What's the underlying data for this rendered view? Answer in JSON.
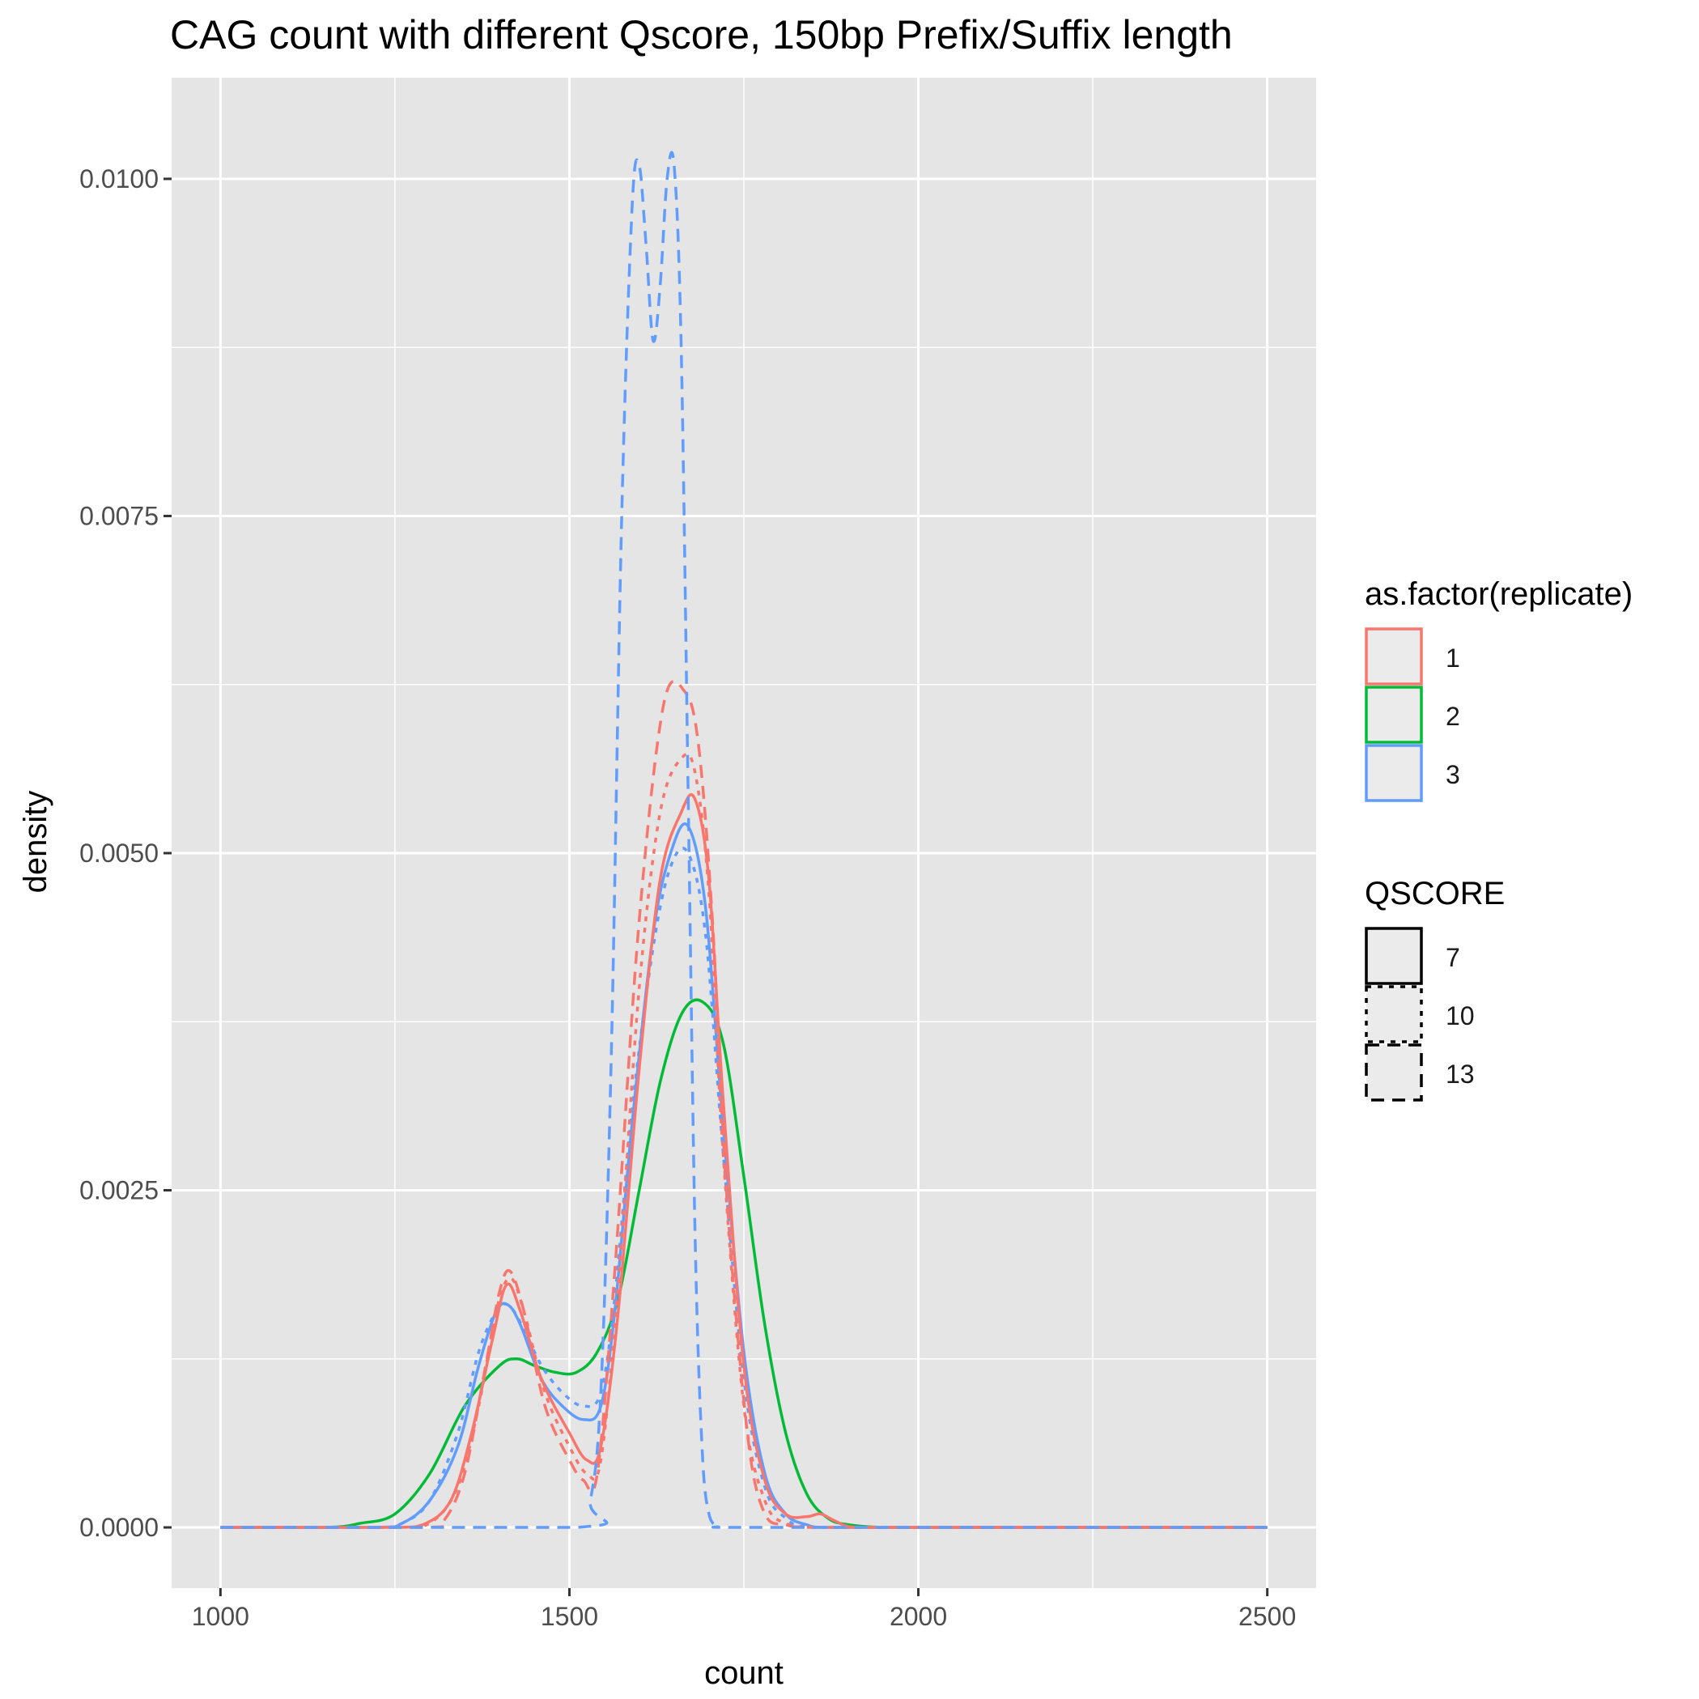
{
  "chart_data": {
    "type": "line",
    "title": "CAG count with different Qscore, 150bp Prefix/Suffix length",
    "xlabel": "count",
    "ylabel": "density",
    "xlim": [
      930,
      2570
    ],
    "ylim": [
      -0.00045,
      0.01075
    ],
    "x_ticks": [
      1000,
      1500,
      2000,
      2500
    ],
    "x_tick_labels": [
      "1000",
      "1500",
      "2000",
      "2500"
    ],
    "x_minor_ticks": [
      1250,
      1750,
      2250
    ],
    "y_ticks": [
      0,
      0.0025,
      0.005,
      0.0075,
      0.01
    ],
    "y_tick_labels": [
      "0.0000",
      "0.0025",
      "0.0050",
      "0.0075",
      "0.0100"
    ],
    "y_minor_ticks": [
      0.00125,
      0.00375,
      0.00625,
      0.00875
    ],
    "grid": true,
    "panel_background": "#e5e5e5",
    "grid_color": "#ffffff",
    "legend_position": "right",
    "legends": [
      {
        "title": "as.factor(replicate)",
        "kind": "color",
        "entries": [
          {
            "label": "1",
            "color": "#F8766D"
          },
          {
            "label": "2",
            "color": "#00BA38"
          },
          {
            "label": "3",
            "color": "#619CFF"
          }
        ]
      },
      {
        "title": "QSCORE",
        "kind": "linetype",
        "entries": [
          {
            "label": "7",
            "linetype": "solid"
          },
          {
            "label": "10",
            "linetype": "dotted"
          },
          {
            "label": "13",
            "linetype": "dashed"
          }
        ]
      }
    ],
    "series": [
      {
        "replicate": "1",
        "qscore": "7",
        "color": "#F8766D",
        "linetype": "solid",
        "x": [
          1000,
          1240,
          1290,
          1330,
          1360,
          1390,
          1410,
          1430,
          1460,
          1500,
          1525,
          1545,
          1570,
          1600,
          1630,
          1660,
          1680,
          1700,
          1720,
          1750,
          1780,
          1810,
          1840,
          1860,
          1880,
          1910,
          2000,
          2500
        ],
        "y": [
          0,
          0,
          2e-05,
          0.0002,
          0.0007,
          0.0014,
          0.0018,
          0.0016,
          0.0011,
          0.0007,
          0.0005,
          0.0006,
          0.0016,
          0.0034,
          0.0048,
          0.0053,
          0.0054,
          0.0048,
          0.0032,
          0.0012,
          0.00035,
          0.0001,
          8e-05,
          0.0001,
          5e-05,
          0,
          0,
          0
        ]
      },
      {
        "replicate": "1",
        "qscore": "10",
        "color": "#F8766D",
        "linetype": "dotted",
        "x": [
          1000,
          1250,
          1300,
          1340,
          1370,
          1395,
          1415,
          1435,
          1465,
          1500,
          1525,
          1545,
          1570,
          1600,
          1630,
          1660,
          1680,
          1700,
          1720,
          1750,
          1780,
          1810,
          1860,
          2000,
          2500
        ],
        "y": [
          0,
          0,
          3e-05,
          0.0003,
          0.0009,
          0.0016,
          0.00185,
          0.0016,
          0.001,
          0.0006,
          0.0004,
          0.0005,
          0.0018,
          0.004,
          0.0053,
          0.0057,
          0.0056,
          0.0047,
          0.0028,
          0.0009,
          0.0002,
          3e-05,
          0,
          0,
          0
        ]
      },
      {
        "replicate": "1",
        "qscore": "13",
        "color": "#F8766D",
        "linetype": "dashed",
        "x": [
          1000,
          1290,
          1320,
          1350,
          1380,
          1400,
          1415,
          1435,
          1465,
          1500,
          1520,
          1540,
          1565,
          1600,
          1635,
          1665,
          1685,
          1705,
          1725,
          1755,
          1780,
          1810,
          1850,
          2000,
          2500
        ],
        "y": [
          0,
          0,
          5e-05,
          0.0004,
          0.0012,
          0.00175,
          0.0019,
          0.0016,
          0.0009,
          0.0005,
          0.00035,
          0.0004,
          0.0019,
          0.0045,
          0.0061,
          0.0062,
          0.0058,
          0.0045,
          0.0025,
          0.0007,
          0.0001,
          2e-05,
          0,
          0,
          0
        ]
      },
      {
        "replicate": "2",
        "qscore": "7",
        "color": "#00BA38",
        "linetype": "solid",
        "x": [
          1000,
          1150,
          1200,
          1250,
          1300,
          1350,
          1400,
          1425,
          1450,
          1480,
          1510,
          1540,
          1570,
          1600,
          1630,
          1660,
          1690,
          1720,
          1750,
          1780,
          1810,
          1840,
          1870,
          1900,
          1950,
          2000,
          2500
        ],
        "y": [
          0,
          0,
          3e-05,
          0.0001,
          0.0004,
          0.0009,
          0.0012,
          0.00125,
          0.0012,
          0.00115,
          0.00115,
          0.0013,
          0.0017,
          0.0025,
          0.0033,
          0.0038,
          0.0039,
          0.0036,
          0.0026,
          0.0015,
          0.0007,
          0.00025,
          7e-05,
          2e-05,
          0,
          0,
          0
        ]
      },
      {
        "replicate": "3",
        "qscore": "7",
        "color": "#619CFF",
        "linetype": "solid",
        "x": [
          1000,
          1220,
          1260,
          1300,
          1340,
          1370,
          1395,
          1412,
          1430,
          1460,
          1490,
          1520,
          1545,
          1565,
          1590,
          1620,
          1645,
          1670,
          1695,
          1720,
          1750,
          1780,
          1810,
          1840,
          1870,
          2000,
          2500
        ],
        "y": [
          0,
          0,
          3e-05,
          0.0002,
          0.0006,
          0.0012,
          0.0016,
          0.00165,
          0.0015,
          0.0011,
          0.0009,
          0.0008,
          0.0009,
          0.0016,
          0.003,
          0.0044,
          0.005,
          0.0052,
          0.0046,
          0.003,
          0.0013,
          0.0004,
          0.0001,
          2e-05,
          0,
          0,
          0
        ]
      },
      {
        "replicate": "3",
        "qscore": "10",
        "color": "#619CFF",
        "linetype": "dotted",
        "x": [
          1000,
          1220,
          1260,
          1300,
          1340,
          1370,
          1395,
          1412,
          1432,
          1460,
          1490,
          1520,
          1545,
          1565,
          1590,
          1620,
          1645,
          1670,
          1695,
          1720,
          1750,
          1780,
          1810,
          1850,
          2000,
          2500
        ],
        "y": [
          0,
          0,
          3e-05,
          0.0002,
          0.0007,
          0.0013,
          0.0016,
          0.00165,
          0.0015,
          0.0012,
          0.001,
          0.0009,
          0.001,
          0.0017,
          0.0031,
          0.0043,
          0.0049,
          0.005,
          0.0044,
          0.0028,
          0.0011,
          0.0003,
          7e-05,
          0,
          0,
          0
        ]
      },
      {
        "replicate": "3",
        "qscore": "13",
        "color": "#619CFF",
        "linetype": "dashed",
        "x": [
          1000,
          1510,
          1530,
          1545,
          1560,
          1575,
          1590,
          1600,
          1610,
          1620,
          1630,
          1640,
          1650,
          1660,
          1670,
          1680,
          1690,
          1700,
          1715,
          1730,
          2000,
          2500
        ],
        "y": [
          0,
          0,
          0.0002,
          0.001,
          0.0035,
          0.0075,
          0.0098,
          0.0101,
          0.0095,
          0.0088,
          0.0092,
          0.01,
          0.0101,
          0.0088,
          0.0055,
          0.0022,
          0.0006,
          0.0001,
          1e-05,
          0,
          0,
          0
        ]
      }
    ]
  }
}
